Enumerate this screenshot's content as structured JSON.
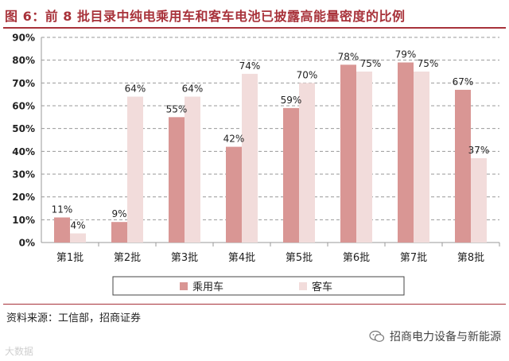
{
  "header": {
    "title": "图 6：前 8 批目录中纯电乘用车和客车电池已披露高能量密度的比例"
  },
  "chart_data": {
    "type": "bar",
    "categories": [
      "第1批",
      "第2批",
      "第3批",
      "第4批",
      "第5批",
      "第6批",
      "第7批",
      "第8批"
    ],
    "series": [
      {
        "name": "乘用车",
        "values": [
          11,
          9,
          55,
          42,
          59,
          78,
          79,
          67
        ],
        "labels": [
          "11%",
          "9%",
          "55%",
          "42%",
          "59%",
          "78%",
          "79%",
          "67%"
        ],
        "color": "#d99694"
      },
      {
        "name": "客车",
        "values": [
          4,
          64,
          64,
          74,
          70,
          75,
          75,
          37
        ],
        "labels": [
          "4%",
          "64%",
          "64%",
          "74%",
          "70%",
          "75%",
          "75%",
          "37%"
        ],
        "color": "#f2dcdb"
      }
    ],
    "y_ticks": [
      "0%",
      "10%",
      "20%",
      "30%",
      "40%",
      "50%",
      "60%",
      "70%",
      "80%",
      "90%"
    ],
    "ylim": [
      0,
      90
    ],
    "grid": true,
    "legend_position": "bottom"
  },
  "footer": {
    "source": "资料来源：工信部，招商证券",
    "watermark": "招商电力设备与新能源",
    "watermark_left": "大数据"
  }
}
